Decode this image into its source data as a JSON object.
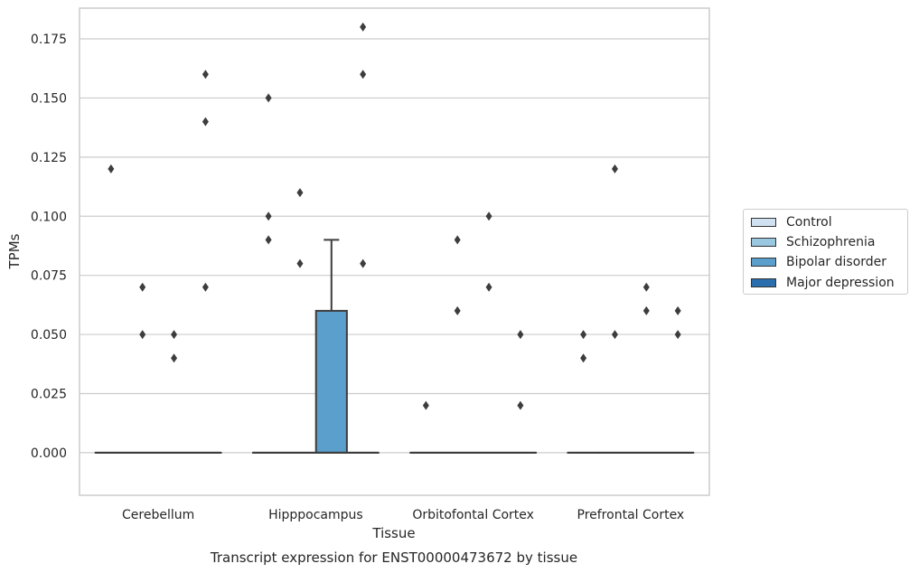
{
  "chart_data": {
    "type": "box",
    "title": "Transcript expression for ENST00000473672 by tissue",
    "xlabel": "Tissue",
    "ylabel": "TPMs",
    "categories": [
      "Cerebellum",
      "Hipppocampus",
      "Orbitofontal Cortex",
      "Prefrontal Cortex"
    ],
    "ylim": [
      -0.018,
      0.188
    ],
    "yticks": [
      "0.000",
      "0.025",
      "0.050",
      "0.075",
      "0.100",
      "0.125",
      "0.150",
      "0.175"
    ],
    "ytick_values": [
      0,
      0.025,
      0.05,
      0.075,
      0.1,
      0.125,
      0.15,
      0.175
    ],
    "grid": "y",
    "legend_position": "right",
    "series": [
      {
        "name": "Control",
        "color": "#d0e2f2",
        "boxes": [
          {
            "q1": 0,
            "median": 0,
            "q3": 0,
            "whisker_low": 0,
            "whisker_high": 0,
            "outliers": [
              0.12
            ]
          },
          {
            "q1": 0,
            "median": 0,
            "q3": 0,
            "whisker_low": 0,
            "whisker_high": 0,
            "outliers": [
              0.15,
              0.1,
              0.09
            ]
          },
          {
            "q1": 0,
            "median": 0,
            "q3": 0,
            "whisker_low": 0,
            "whisker_high": 0,
            "outliers": [
              0.02
            ]
          },
          {
            "q1": 0,
            "median": 0,
            "q3": 0,
            "whisker_low": 0,
            "whisker_high": 0,
            "outliers": [
              0.05,
              0.04
            ]
          }
        ]
      },
      {
        "name": "Schizophrenia",
        "color": "#9ac8e0",
        "boxes": [
          {
            "q1": 0,
            "median": 0,
            "q3": 0,
            "whisker_low": 0,
            "whisker_high": 0,
            "outliers": [
              0.07,
              0.05
            ]
          },
          {
            "q1": 0,
            "median": 0,
            "q3": 0,
            "whisker_low": 0,
            "whisker_high": 0,
            "outliers": [
              0.11,
              0.08
            ]
          },
          {
            "q1": 0,
            "median": 0,
            "q3": 0,
            "whisker_low": 0,
            "whisker_high": 0,
            "outliers": [
              0.09,
              0.06
            ]
          },
          {
            "q1": 0,
            "median": 0,
            "q3": 0,
            "whisker_low": 0,
            "whisker_high": 0,
            "outliers": [
              0.12,
              0.05
            ]
          }
        ]
      },
      {
        "name": "Bipolar disorder",
        "color": "#5b9fcd",
        "boxes": [
          {
            "q1": 0,
            "median": 0,
            "q3": 0,
            "whisker_low": 0,
            "whisker_high": 0,
            "outliers": [
              0.05,
              0.04
            ]
          },
          {
            "q1": 0,
            "median": 0,
            "q3": 0.06,
            "whisker_low": 0,
            "whisker_high": 0.09,
            "outliers": []
          },
          {
            "q1": 0,
            "median": 0,
            "q3": 0,
            "whisker_low": 0,
            "whisker_high": 0,
            "outliers": [
              0.1,
              0.07
            ]
          },
          {
            "q1": 0,
            "median": 0,
            "q3": 0,
            "whisker_low": 0,
            "whisker_high": 0,
            "outliers": [
              0.07,
              0.06
            ]
          }
        ]
      },
      {
        "name": "Major depression",
        "color": "#2a6ead",
        "boxes": [
          {
            "q1": 0,
            "median": 0,
            "q3": 0,
            "whisker_low": 0,
            "whisker_high": 0,
            "outliers": [
              0.16,
              0.14,
              0.07
            ]
          },
          {
            "q1": 0,
            "median": 0,
            "q3": 0,
            "whisker_low": 0,
            "whisker_high": 0,
            "outliers": [
              0.18,
              0.16,
              0.08
            ]
          },
          {
            "q1": 0,
            "median": 0,
            "q3": 0,
            "whisker_low": 0,
            "whisker_high": 0,
            "outliers": [
              0.05,
              0.02
            ]
          },
          {
            "q1": 0,
            "median": 0,
            "q3": 0,
            "whisker_low": 0,
            "whisker_high": 0,
            "outliers": [
              0.06,
              0.05
            ]
          }
        ]
      }
    ]
  }
}
